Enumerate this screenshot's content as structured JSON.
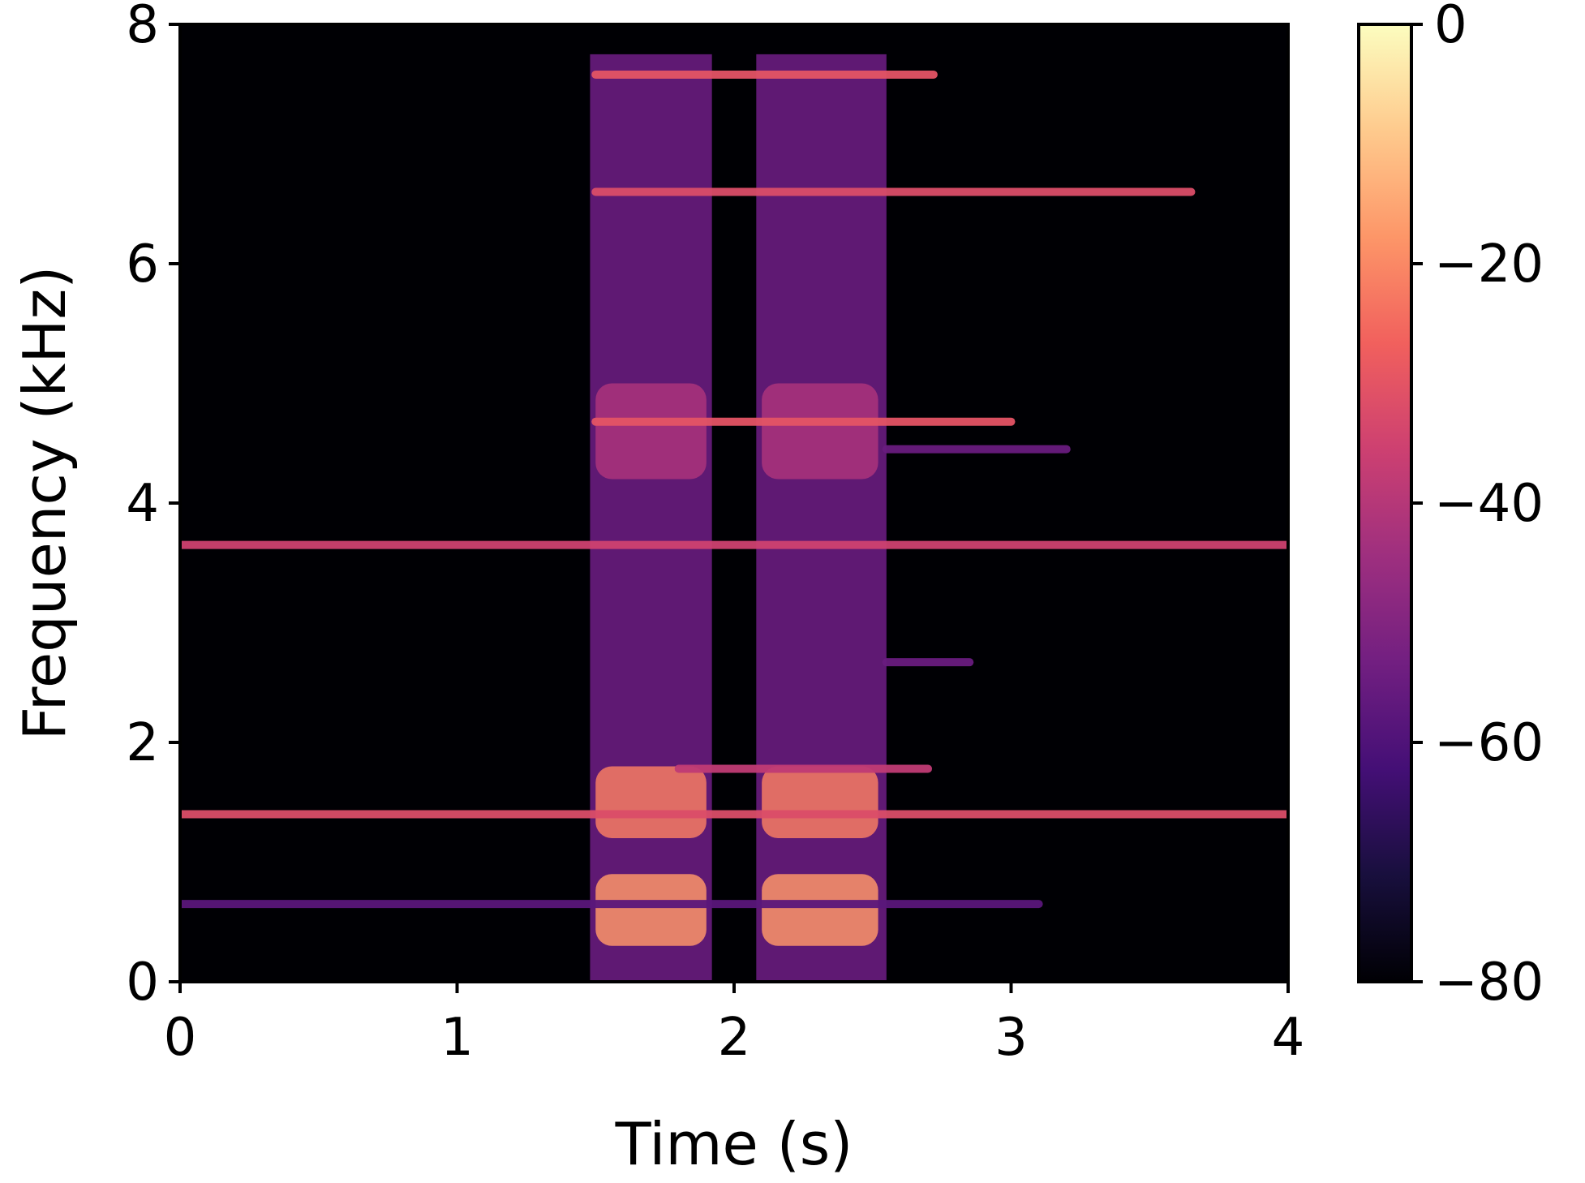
{
  "chart_data": {
    "type": "heatmap",
    "title": "",
    "xlabel": "Time (s)",
    "ylabel": "Frequency (kHz)",
    "xlim": [
      0,
      4
    ],
    "ylim": [
      0,
      8
    ],
    "x_ticks": [
      0,
      1,
      2,
      3,
      4
    ],
    "y_ticks": [
      0,
      2,
      4,
      6,
      8
    ],
    "x_tick_labels": [
      "0",
      "1",
      "2",
      "3",
      "4"
    ],
    "y_tick_labels": [
      "0",
      "2",
      "4",
      "6",
      "8"
    ],
    "grid": false,
    "colorbar": {
      "colormap": "magma",
      "range": [
        -80,
        0
      ],
      "ticks": [
        0,
        -20,
        -40,
        -60,
        -80
      ],
      "tick_labels": [
        "0",
        "−20",
        "−40",
        "−60",
        "−80"
      ],
      "colors": [
        "#000004",
        "#180f3d",
        "#440f76",
        "#721f81",
        "#9e2f7f",
        "#cd4071",
        "#f1605d",
        "#fd9668",
        "#feca8d",
        "#fcfdbf"
      ]
    },
    "background_level": -80,
    "broadband_segments": [
      {
        "t_start": 1.48,
        "t_end": 1.92,
        "level": -55
      },
      {
        "t_start": 2.08,
        "t_end": 2.55,
        "level": -55
      }
    ],
    "energy_blobs": [
      {
        "t_start": 1.5,
        "t_end": 1.9,
        "f_low": 0.3,
        "f_high": 0.9,
        "level": -18
      },
      {
        "t_start": 2.1,
        "t_end": 2.52,
        "f_low": 0.3,
        "f_high": 0.9,
        "level": -18
      },
      {
        "t_start": 1.5,
        "t_end": 1.9,
        "f_low": 1.2,
        "f_high": 1.8,
        "level": -22
      },
      {
        "t_start": 2.1,
        "t_end": 2.52,
        "f_low": 1.2,
        "f_high": 1.8,
        "level": -22
      },
      {
        "t_start": 1.5,
        "t_end": 1.9,
        "f_low": 4.2,
        "f_high": 5.0,
        "level": -42
      },
      {
        "t_start": 2.1,
        "t_end": 2.52,
        "f_low": 4.2,
        "f_high": 5.0,
        "level": -42
      }
    ],
    "tonal_lines": [
      {
        "freq_khz": 7.58,
        "t_start": 1.5,
        "t_end": 2.72,
        "level": -30
      },
      {
        "freq_khz": 6.6,
        "t_start": 1.5,
        "t_end": 3.65,
        "level": -32
      },
      {
        "freq_khz": 4.68,
        "t_start": 1.5,
        "t_end": 3.0,
        "level": -30
      },
      {
        "freq_khz": 4.45,
        "t_start": 2.55,
        "t_end": 3.2,
        "level": -55
      },
      {
        "freq_khz": 3.65,
        "t_start": 0.0,
        "t_end": 4.0,
        "level": -35
      },
      {
        "freq_khz": 2.67,
        "t_start": 2.55,
        "t_end": 2.85,
        "level": -55
      },
      {
        "freq_khz": 1.78,
        "t_start": 1.8,
        "t_end": 2.7,
        "level": -38
      },
      {
        "freq_khz": 1.4,
        "t_start": 0.0,
        "t_end": 4.0,
        "level": -32
      },
      {
        "freq_khz": 0.65,
        "t_start": 0.0,
        "t_end": 3.1,
        "level": -58
      }
    ]
  }
}
